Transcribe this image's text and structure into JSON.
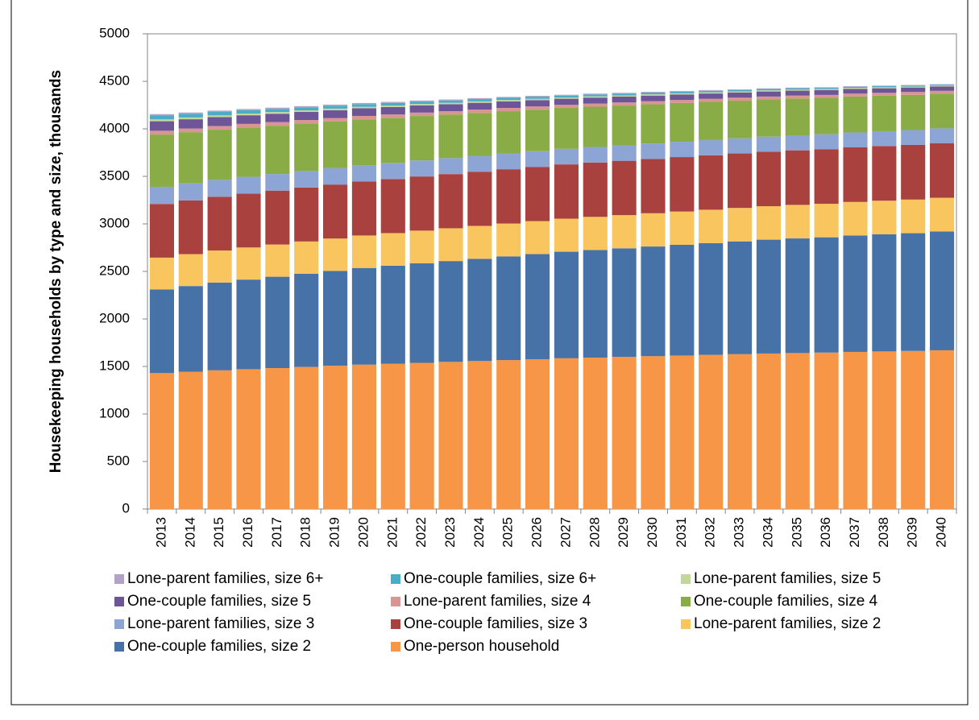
{
  "chart_data": {
    "type": "stacked_bar",
    "y_label": "Housekeeping households by type and size, thousands",
    "categories": [
      "2013",
      "2014",
      "2015",
      "2016",
      "2017",
      "2018",
      "2019",
      "2020",
      "2021",
      "2022",
      "2023",
      "2024",
      "2025",
      "2026",
      "2027",
      "2028",
      "2029",
      "2030",
      "2031",
      "2032",
      "2033",
      "2034",
      "2035",
      "2036",
      "2037",
      "2038",
      "2039",
      "2040"
    ],
    "ylim": [
      0,
      5000
    ],
    "yticks": [
      0,
      500,
      1000,
      1500,
      2000,
      2500,
      3000,
      3500,
      4000,
      4500,
      5000
    ],
    "series": [
      {
        "name": "One-person household",
        "color": "#F79646",
        "values": [
          1430,
          1444,
          1459,
          1471,
          1483,
          1495,
          1507,
          1519,
          1528,
          1538,
          1548,
          1557,
          1567,
          1576,
          1586,
          1593,
          1600,
          1608,
          1615,
          1622,
          1629,
          1636,
          1641,
          1646,
          1653,
          1658,
          1663,
          1670
        ]
      },
      {
        "name": "One-couple families, size 2",
        "color": "#4672A8",
        "values": [
          880,
          902,
          924,
          943,
          961,
          980,
          998,
          1017,
          1032,
          1047,
          1061,
          1076,
          1091,
          1106,
          1121,
          1132,
          1143,
          1154,
          1165,
          1176,
          1187,
          1198,
          1206,
          1213,
          1224,
          1232,
          1239,
          1250
        ]
      },
      {
        "name": "Lone-parent families, size 2",
        "color": "#F9C55F",
        "values": [
          335,
          336,
          337,
          338,
          339,
          340,
          341,
          342,
          343,
          344,
          345,
          346,
          346,
          347,
          348,
          349,
          349,
          350,
          350,
          351,
          352,
          352,
          353,
          353,
          354,
          354,
          354,
          355
        ]
      },
      {
        "name": "One-couple families, size 3",
        "color": "#A9413F",
        "values": [
          565,
          566,
          566,
          567,
          567,
          568,
          568,
          569,
          569,
          570,
          570,
          570,
          571,
          571,
          571,
          572,
          572,
          572,
          573,
          573,
          573,
          574,
          574,
          574,
          574,
          575,
          575,
          575
        ]
      },
      {
        "name": "Lone-parent families, size 3",
        "color": "#8DA5D4",
        "values": [
          180,
          178,
          177,
          176,
          174,
          173,
          172,
          171,
          170,
          169,
          168,
          167,
          166,
          165,
          164,
          163,
          162,
          161,
          161,
          160,
          159,
          158,
          158,
          157,
          157,
          156,
          156,
          155
        ]
      },
      {
        "name": "One-couple families, size 4",
        "color": "#8AAC47",
        "values": [
          550,
          539,
          528,
          519,
          509,
          500,
          491,
          482,
          474,
          467,
          459,
          452,
          445,
          437,
          430,
          424,
          419,
          413,
          408,
          402,
          396,
          391,
          387,
          383,
          378,
          374,
          371,
          365
        ]
      },
      {
        "name": "Lone-parent families, size 4",
        "color": "#D99594",
        "values": [
          40,
          39,
          39,
          38,
          38,
          37,
          37,
          36,
          36,
          36,
          35,
          35,
          34,
          34,
          33,
          33,
          33,
          33,
          32,
          32,
          32,
          31,
          31,
          31,
          31,
          30,
          30,
          30
        ]
      },
      {
        "name": "One-couple families, size 5",
        "color": "#6E5597",
        "values": [
          100,
          97,
          93,
          91,
          88,
          85,
          82,
          80,
          77,
          75,
          73,
          71,
          69,
          66,
          64,
          63,
          61,
          59,
          58,
          56,
          54,
          53,
          52,
          50,
          49,
          48,
          47,
          45
        ]
      },
      {
        "name": "Lone-parent families, size 5",
        "color": "#C3D69B",
        "values": [
          20,
          19,
          19,
          18,
          18,
          17,
          17,
          16,
          16,
          15,
          15,
          15,
          14,
          14,
          13,
          13,
          13,
          13,
          12,
          12,
          12,
          12,
          11,
          11,
          11,
          11,
          10,
          10
        ]
      },
      {
        "name": "One-couple families, size 6+",
        "color": "#4BACC6",
        "values": [
          40,
          38,
          36,
          35,
          33,
          32,
          30,
          29,
          28,
          26,
          25,
          24,
          23,
          22,
          20,
          20,
          19,
          18,
          17,
          16,
          15,
          14,
          14,
          13,
          12,
          11,
          11,
          10
        ]
      },
      {
        "name": "Lone-parent families, size 6+",
        "color": "#B3A2C7",
        "values": [
          15,
          14,
          14,
          13,
          13,
          12,
          12,
          11,
          11,
          11,
          10,
          10,
          10,
          9,
          9,
          9,
          8,
          8,
          8,
          8,
          7,
          7,
          7,
          7,
          6,
          6,
          6,
          5
        ]
      }
    ]
  }
}
